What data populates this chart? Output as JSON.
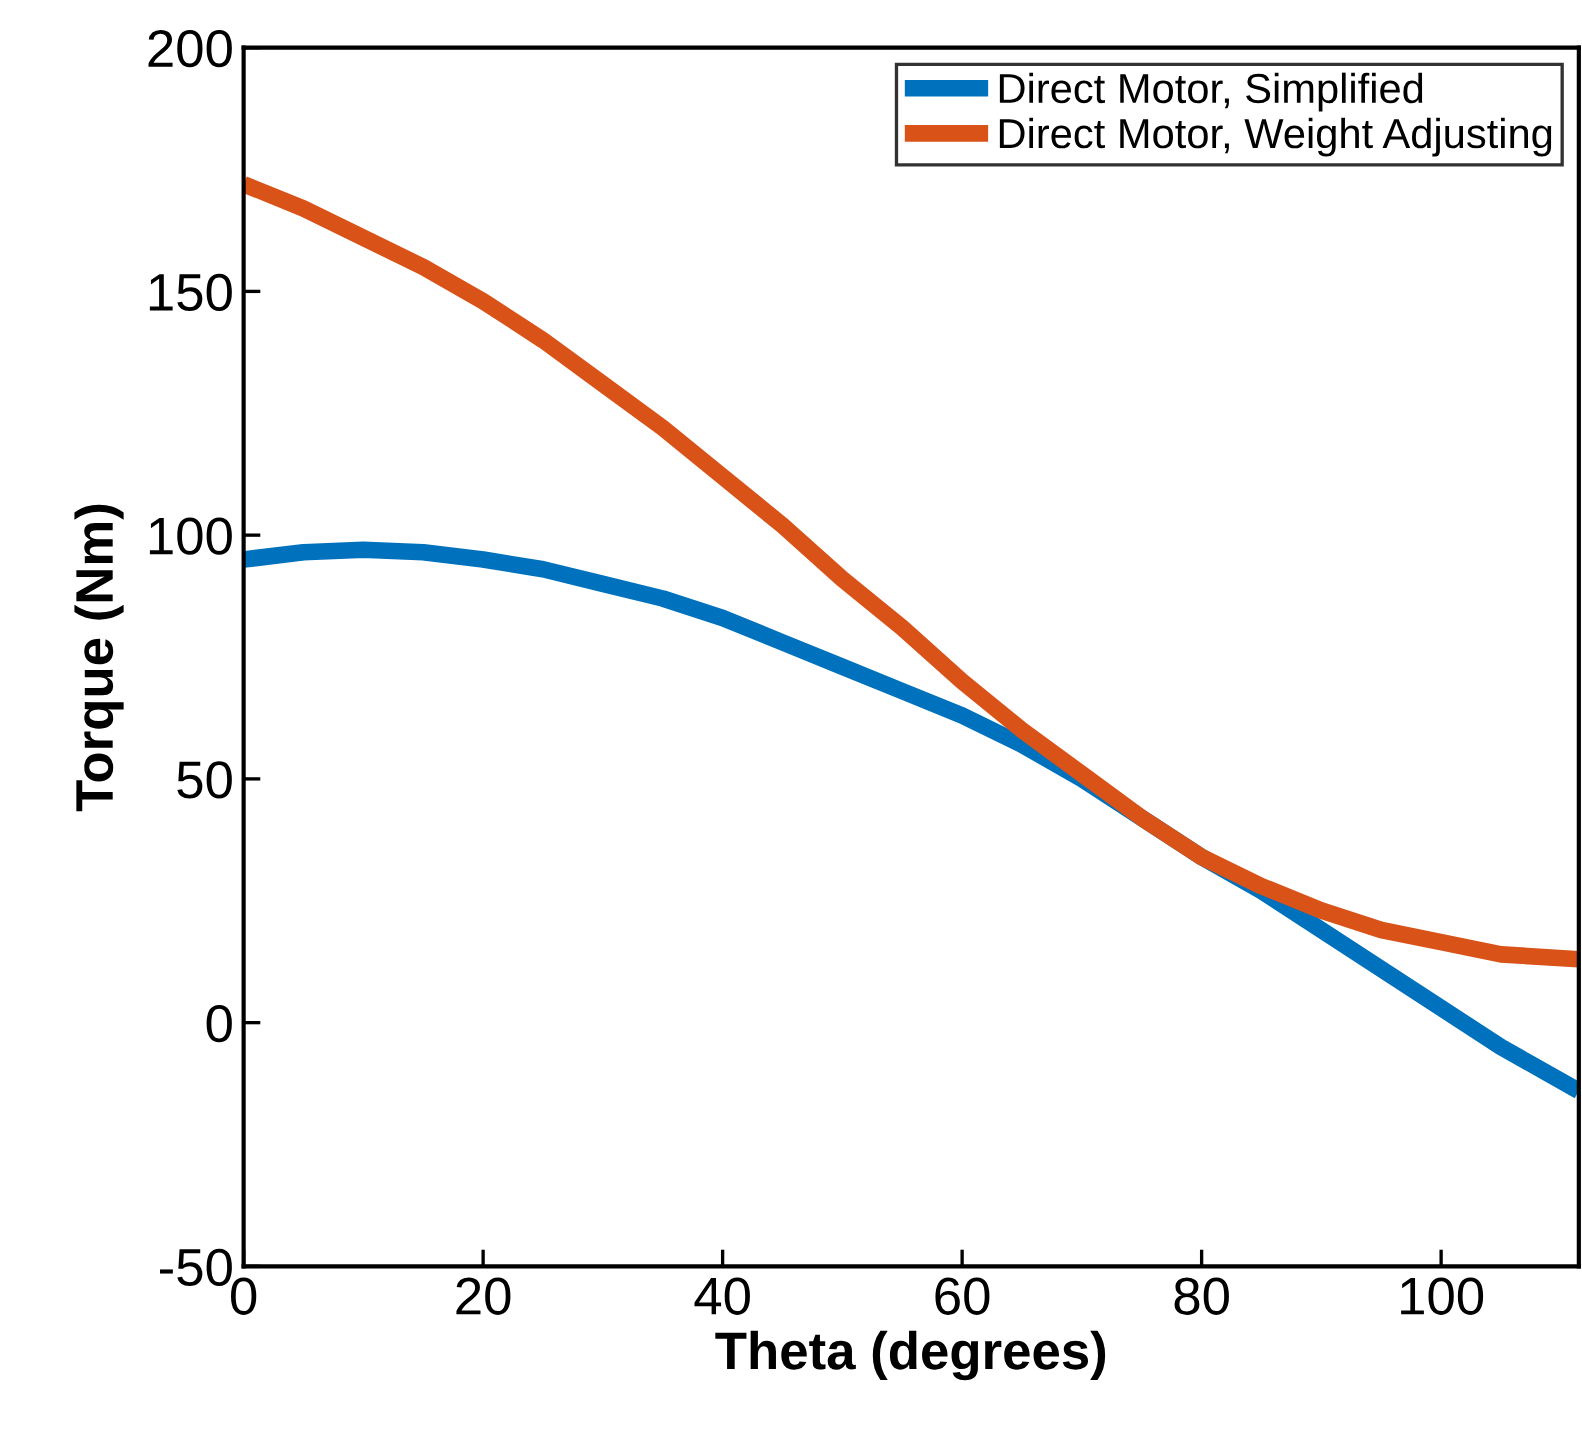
{
  "chart_data": {
    "type": "line",
    "xlabel": "Theta (degrees)",
    "ylabel": "Torque (Nm)",
    "xlim": [
      0,
      111.5
    ],
    "ylim": [
      -50,
      200
    ],
    "xticks": [
      0,
      20,
      40,
      60,
      80,
      100
    ],
    "yticks": [
      -50,
      0,
      50,
      100,
      150,
      200
    ],
    "grid": false,
    "legend": "top right",
    "marker": "none",
    "line_style": "solid",
    "series": [
      {
        "name": "Direct Motor, Simplified",
        "color": "#0072bd",
        "x": [
          0,
          5,
          10,
          15,
          20,
          25,
          30,
          35,
          40,
          45,
          50,
          55,
          60,
          65,
          70,
          75,
          80,
          85,
          90,
          95,
          100,
          105,
          111.5
        ],
        "values": [
          95,
          96.5,
          97,
          96.5,
          95,
          93,
          90,
          87,
          83,
          78,
          73,
          68,
          63,
          57,
          50,
          42,
          34,
          27,
          19,
          11,
          3,
          -5,
          -14
        ]
      },
      {
        "name": "Direct Motor, Weight Adjusting",
        "color": "#d95319",
        "x": [
          0,
          5,
          10,
          15,
          20,
          25,
          30,
          35,
          40,
          45,
          50,
          55,
          60,
          65,
          70,
          75,
          80,
          85,
          90,
          95,
          100,
          105,
          111.5
        ],
        "values": [
          172,
          167,
          161,
          155,
          148,
          140,
          131,
          122,
          112,
          102,
          91,
          81,
          70,
          60,
          51,
          42,
          34,
          28,
          23,
          19,
          16.5,
          14,
          13
        ]
      }
    ]
  }
}
